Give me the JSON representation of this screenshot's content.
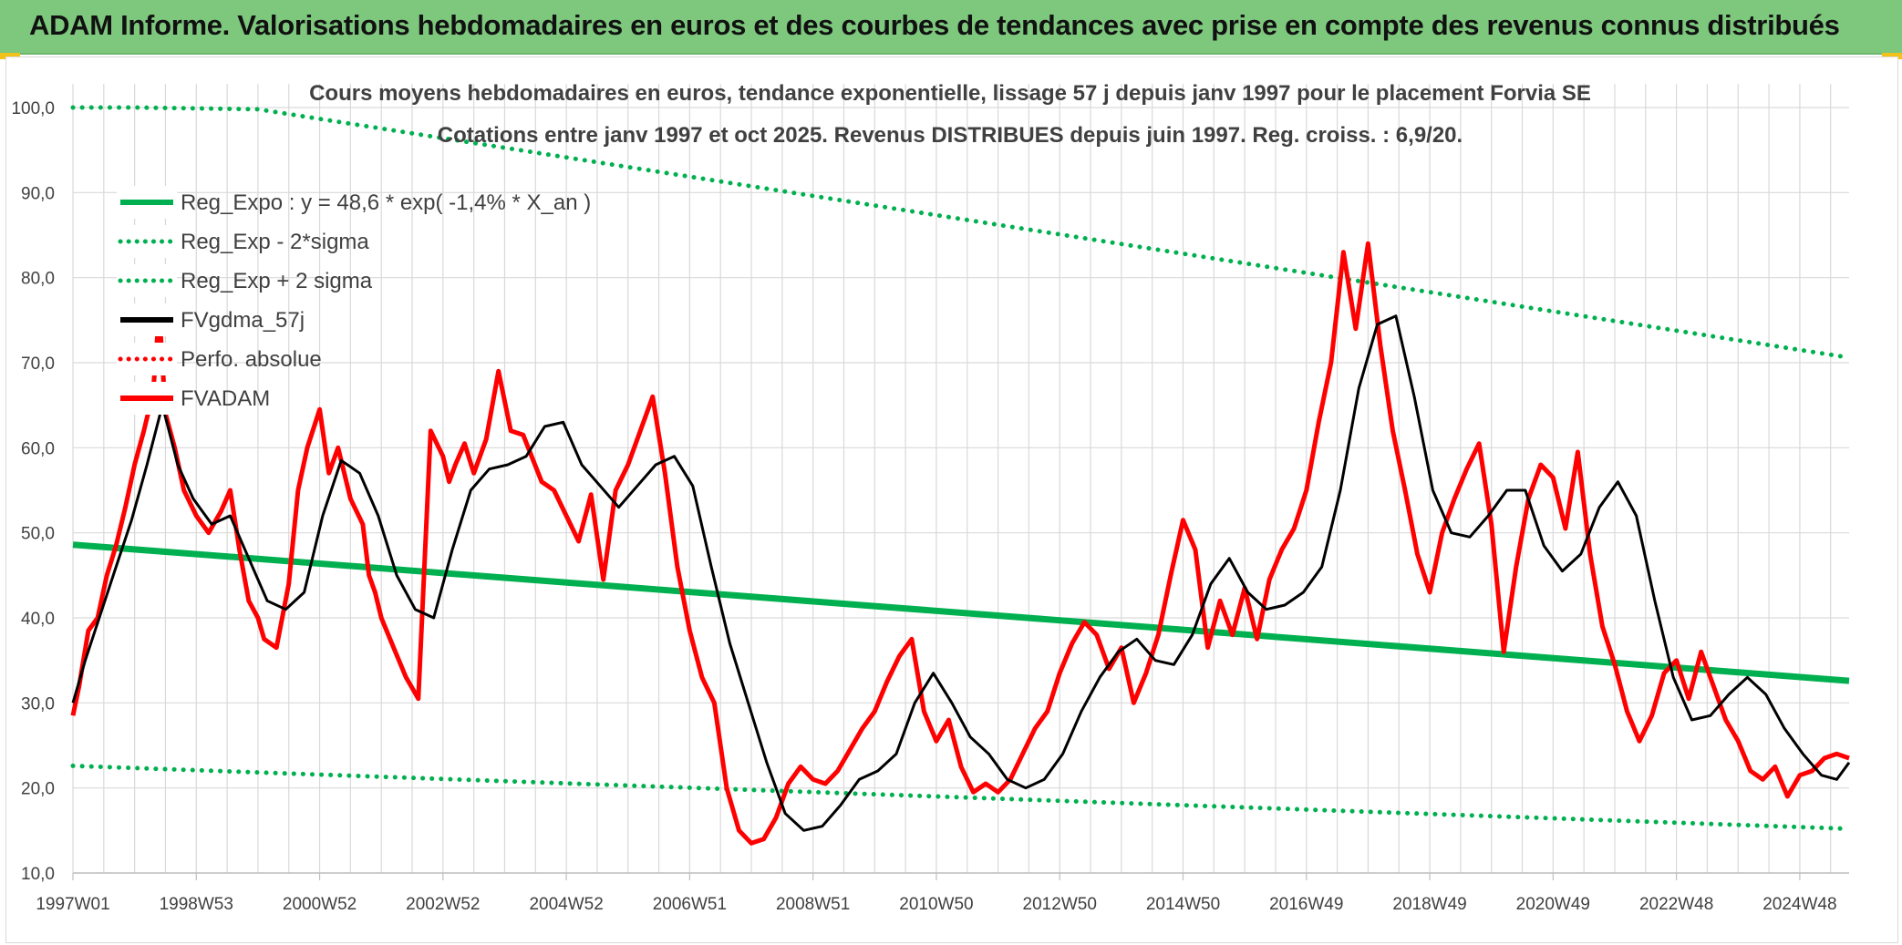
{
  "banner": {
    "title": "ADAM Informe. Valorisations hebdomadaires en euros et des courbes de tendances avec prise en compte des revenus connus distribués"
  },
  "colors": {
    "banner_bg": "#7ec87e",
    "accent_corner": "#f2c21b",
    "reg_expo": "#00b050",
    "price": "#ff0000",
    "smooth": "#000000",
    "grid": "#d9d9d9"
  },
  "chart_data": {
    "type": "line",
    "title": "Cours moyens hebdomadaires en euros, tendance exponentielle, lissage 57 j depuis janv 1997 pour le placement Forvia SE",
    "subtitle": "Cotations entre janv 1997 et oct 2025. Revenus DISTRIBUES depuis juin 1997. Reg. croiss. : 6,9/20.",
    "ylim": [
      10,
      100
    ],
    "yticks": [
      "10,0",
      "20,0",
      "30,0",
      "40,0",
      "50,0",
      "60,0",
      "70,0",
      "80,0",
      "90,0",
      "100,0"
    ],
    "ytick_values": [
      10,
      20,
      30,
      40,
      50,
      60,
      70,
      80,
      90,
      100
    ],
    "x_domain": [
      1997.0,
      2025.8
    ],
    "xtick_labels": [
      "1997W01",
      "1998W53",
      "2000W52",
      "2002W52",
      "2004W52",
      "2006W51",
      "2008W51",
      "2010W50",
      "2012W50",
      "2014W50",
      "2016W49",
      "2018W49",
      "2020W49",
      "2022W48",
      "2024W48"
    ],
    "xtick_values": [
      1997.0,
      1999.0,
      2001.0,
      2003.0,
      2005.0,
      2007.0,
      2009.0,
      2011.0,
      2013.0,
      2015.0,
      2017.0,
      2019.0,
      2021.0,
      2023.0,
      2025.0
    ],
    "grid": true,
    "legend_position": "top-left",
    "legend": [
      {
        "label": "Reg_Expo : y = 48,6 * exp( -1,4% *  X_an )",
        "style": "solid",
        "color": "#00b050"
      },
      {
        "label": "Reg_Exp - 2*sigma",
        "style": "dotted",
        "color": "#00b050"
      },
      {
        "label": "Reg_Exp + 2 sigma",
        "style": "dotted",
        "color": "#00b050"
      },
      {
        "label": "FVgdma_57j",
        "style": "solid",
        "color": "#000000"
      },
      {
        "label": "Perfo. absolue",
        "style": "dotted",
        "color": "#ff0000"
      },
      {
        "label": "FVADAM",
        "style": "solid",
        "color": "#ff0000"
      }
    ],
    "series": [
      {
        "name": "Reg_Expo : y = 48,6 * exp( -1,4% *  X_an )",
        "x": [
          1997.0,
          2025.8
        ],
        "values": [
          48.6,
          32.6
        ]
      },
      {
        "name": "Reg_Exp - 2*sigma",
        "x": [
          1997.0,
          2025.8
        ],
        "values": [
          22.6,
          15.2
        ]
      },
      {
        "name": "Reg_Exp + 2 sigma",
        "x": [
          1997.0,
          1997.5,
          1998.0,
          2000.0,
          2025.8
        ],
        "values": [
          100.0,
          100.0,
          100.0,
          99.8,
          70.6
        ]
      },
      {
        "name": "FVADAM",
        "x": [
          1997.0,
          1997.1,
          1997.25,
          1997.4,
          1997.55,
          1997.7,
          1997.85,
          1998.0,
          1998.15,
          1998.3,
          1998.4,
          1998.5,
          1998.65,
          1998.8,
          1999.0,
          1999.2,
          1999.4,
          1999.55,
          1999.7,
          1999.85,
          2000.0,
          2000.1,
          2000.3,
          2000.5,
          2000.65,
          2000.8,
          2001.0,
          2001.15,
          2001.3,
          2001.5,
          2001.7,
          2001.8,
          2001.9,
          2002.0,
          2002.2,
          2002.4,
          2002.6,
          2002.8,
          2003.0,
          2003.1,
          2003.2,
          2003.35,
          2003.5,
          2003.7,
          2003.9,
          2004.1,
          2004.3,
          2004.6,
          2004.8,
          2005.0,
          2005.2,
          2005.4,
          2005.6,
          2005.8,
          2006.0,
          2006.2,
          2006.4,
          2006.6,
          2006.8,
          2007.0,
          2007.2,
          2007.4,
          2007.6,
          2007.8,
          2008.0,
          2008.2,
          2008.4,
          2008.6,
          2008.8,
          2009.0,
          2009.2,
          2009.4,
          2009.6,
          2009.8,
          2010.0,
          2010.2,
          2010.4,
          2010.6,
          2010.8,
          2011.0,
          2011.2,
          2011.4,
          2011.6,
          2011.8,
          2012.0,
          2012.2,
          2012.4,
          2012.6,
          2012.8,
          2013.0,
          2013.2,
          2013.4,
          2013.6,
          2013.8,
          2014.0,
          2014.2,
          2014.4,
          2014.6,
          2014.8,
          2015.0,
          2015.2,
          2015.4,
          2015.6,
          2015.8,
          2016.0,
          2016.2,
          2016.4,
          2016.6,
          2016.8,
          2017.0,
          2017.2,
          2017.4,
          2017.6,
          2017.8,
          2018.0,
          2018.2,
          2018.4,
          2018.6,
          2018.8,
          2019.0,
          2019.2,
          2019.4,
          2019.6,
          2019.8,
          2020.0,
          2020.2,
          2020.4,
          2020.6,
          2020.8,
          2021.0,
          2021.2,
          2021.4,
          2021.6,
          2021.8,
          2022.0,
          2022.2,
          2022.4,
          2022.6,
          2022.8,
          2023.0,
          2023.2,
          2023.4,
          2023.6,
          2023.8,
          2024.0,
          2024.2,
          2024.4,
          2024.6,
          2024.8,
          2025.0,
          2025.2,
          2025.4,
          2025.6,
          2025.8
        ],
        "values": [
          28.5,
          32.0,
          38.5,
          40.0,
          45.0,
          48.5,
          53.0,
          58.0,
          62.0,
          66.5,
          76.0,
          64.0,
          60.0,
          55.0,
          52.0,
          50.0,
          52.5,
          55.0,
          48.0,
          42.0,
          40.0,
          37.5,
          36.5,
          44.0,
          55.0,
          60.0,
          64.5,
          57.0,
          60.0,
          54.0,
          51.0,
          45.0,
          43.0,
          40.0,
          36.5,
          33.0,
          30.5,
          62.0,
          59.0,
          56.0,
          58.0,
          60.5,
          57.0,
          61.0,
          69.0,
          62.0,
          61.5,
          56.0,
          55.0,
          52.0,
          49.0,
          54.5,
          44.5,
          55.0,
          58.0,
          62.0,
          66.0,
          57.0,
          46.0,
          38.5,
          33.0,
          30.0,
          20.0,
          15.0,
          13.5,
          14.0,
          16.5,
          20.5,
          22.5,
          21.0,
          20.5,
          22.0,
          24.5,
          27.0,
          29.0,
          32.5,
          35.5,
          37.5,
          29.0,
          25.5,
          28.0,
          22.5,
          19.5,
          20.5,
          19.5,
          21.0,
          24.0,
          27.0,
          29.0,
          33.5,
          37.0,
          39.5,
          38.0,
          34.0,
          36.5,
          30.0,
          33.5,
          38.0,
          45.0,
          51.5,
          48.0,
          36.5,
          42.0,
          38.0,
          43.5,
          37.5,
          44.5,
          48.0,
          50.5,
          55.0,
          63.0,
          70.0,
          83.0,
          74.0,
          84.0,
          72.0,
          62.0,
          55.0,
          47.5,
          43.0,
          50.0,
          54.0,
          57.5,
          60.5,
          51.0,
          36.0,
          46.0,
          54.0,
          58.0,
          56.5,
          50.5,
          59.5,
          47.5,
          39.0,
          34.5,
          29.0,
          25.5,
          28.5,
          33.5,
          35.0,
          30.5,
          36.0,
          32.0,
          28.0,
          25.5,
          22.0,
          21.0,
          22.5,
          19.0,
          21.5,
          22.0,
          23.5,
          24.0,
          23.5
        ]
      },
      {
        "name": "FVgdma_57j",
        "x": [
          1997.0,
          1997.2,
          1997.45,
          1997.7,
          1997.95,
          1998.2,
          1998.45,
          1998.7,
          1998.95,
          1999.25,
          1999.55,
          1999.85,
          2000.15,
          2000.45,
          2000.75,
          2001.05,
          2001.35,
          2001.65,
          2001.95,
          2002.25,
          2002.55,
          2002.85,
          2003.15,
          2003.45,
          2003.75,
          2004.05,
          2004.35,
          2004.65,
          2004.95,
          2005.25,
          2005.55,
          2005.85,
          2006.15,
          2006.45,
          2006.75,
          2007.05,
          2007.35,
          2007.65,
          2007.95,
          2008.25,
          2008.55,
          2008.85,
          2009.15,
          2009.45,
          2009.75,
          2010.05,
          2010.35,
          2010.65,
          2010.95,
          2011.25,
          2011.55,
          2011.85,
          2012.15,
          2012.45,
          2012.75,
          2013.05,
          2013.35,
          2013.65,
          2013.95,
          2014.25,
          2014.55,
          2014.85,
          2015.15,
          2015.45,
          2015.75,
          2016.05,
          2016.35,
          2016.65,
          2016.95,
          2017.25,
          2017.55,
          2017.85,
          2018.15,
          2018.45,
          2018.75,
          2019.05,
          2019.35,
          2019.65,
          2019.95,
          2020.25,
          2020.55,
          2020.85,
          2021.15,
          2021.45,
          2021.75,
          2022.05,
          2022.35,
          2022.65,
          2022.95,
          2023.25,
          2023.55,
          2023.85,
          2024.15,
          2024.45,
          2024.75,
          2025.05,
          2025.35,
          2025.6,
          2025.8
        ],
        "values": [
          30.0,
          35.0,
          40.5,
          46.0,
          51.5,
          58.0,
          65.0,
          58.0,
          54.0,
          51.0,
          52.0,
          47.0,
          42.0,
          41.0,
          43.0,
          52.0,
          58.5,
          57.0,
          52.0,
          45.0,
          41.0,
          40.0,
          48.0,
          55.0,
          57.5,
          58.0,
          59.0,
          62.5,
          63.0,
          58.0,
          55.5,
          53.0,
          55.5,
          58.0,
          59.0,
          55.5,
          46.0,
          37.0,
          30.0,
          23.0,
          17.0,
          15.0,
          15.5,
          18.0,
          21.0,
          22.0,
          24.0,
          30.0,
          33.5,
          30.0,
          26.0,
          24.0,
          21.0,
          20.0,
          21.0,
          24.0,
          29.0,
          33.0,
          36.0,
          37.5,
          35.0,
          34.5,
          38.0,
          44.0,
          47.0,
          43.0,
          41.0,
          41.5,
          43.0,
          46.0,
          55.0,
          67.0,
          74.5,
          75.5,
          66.0,
          55.0,
          50.0,
          49.5,
          52.0,
          55.0,
          55.0,
          48.5,
          45.5,
          47.5,
          53.0,
          56.0,
          52.0,
          42.0,
          33.0,
          28.0,
          28.5,
          31.0,
          33.0,
          31.0,
          27.0,
          24.0,
          21.5,
          21.0,
          23.0
        ]
      }
    ]
  }
}
